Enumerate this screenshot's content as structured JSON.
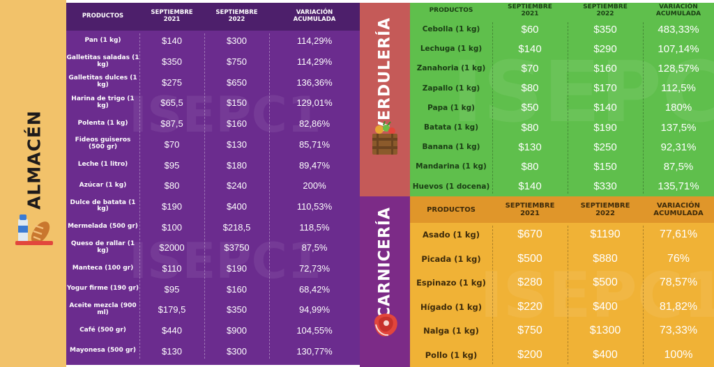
{
  "colors": {
    "almacen_side": "#f2c26a",
    "purple": "#6b2c8e",
    "purple_header": "#4d1f6b",
    "verduleria_side": "#c55a58",
    "green": "#5fbf4c",
    "carniceria_side": "#7c2b87",
    "orange": "#f0b236"
  },
  "watermark_text": "ISEPC1",
  "almacen": {
    "title": "ALMACÉN",
    "icon": "groceries-icon",
    "headers": [
      "PRODUCTOS",
      "SEPTIEMBRE\n2021",
      "SEPTIEMBRE\n2022",
      "VARIACIÓN\nACUMULADA"
    ],
    "rows": [
      [
        "Pan (1 kg)",
        "$140",
        "$300",
        "114,29%"
      ],
      [
        "Galletitas saladas (1 kg)",
        "$350",
        "$750",
        "114,29%"
      ],
      [
        "Galletitas dulces (1 kg)",
        "$275",
        "$650",
        "136,36%"
      ],
      [
        "Harina de trigo (1 kg)",
        "$65,5",
        "$150",
        "129,01%"
      ],
      [
        "Polenta (1 kg)",
        "$87,5",
        "$160",
        "82,86%"
      ],
      [
        "Fideos guiseros (500 gr)",
        "$70",
        "$130",
        "85,71%"
      ],
      [
        "Leche (1 litro)",
        "$95",
        "$180",
        "89,47%"
      ],
      [
        "Azúcar (1 kg)",
        "$80",
        "$240",
        "200%"
      ],
      [
        "Dulce de batata (1 kg)",
        "$190",
        "$400",
        "110,53%"
      ],
      [
        "Mermelada (500 gr)",
        "$100",
        "$218,5",
        "118,5%"
      ],
      [
        "Queso de rallar (1 kg)",
        "$2000",
        "$3750",
        "87,5%"
      ],
      [
        "Manteca (100 gr)",
        "$110",
        "$190",
        "72,73%"
      ],
      [
        "Yogur firme (190 gr)",
        "$95",
        "$160",
        "68,42%"
      ],
      [
        "Aceite mezcla (900 ml)",
        "$179,5",
        "$350",
        "94,99%"
      ],
      [
        "Café (500 gr)",
        "$440",
        "$900",
        "104,55%"
      ],
      [
        "Mayonesa (500 gr)",
        "$130",
        "$300",
        "130,77%"
      ]
    ]
  },
  "verduleria": {
    "title": "VERDULERÍA",
    "icon": "vegetable-crate-icon",
    "headers": [
      "PRODUCTOS",
      "SEPTIEMBRE\n2021",
      "SEPTIEMBRE\n2022",
      "VARIACIÓN\nACUMULADA"
    ],
    "rows": [
      [
        "Cebolla (1 kg)",
        "$60",
        "$350",
        "483,33%"
      ],
      [
        "Lechuga (1 kg)",
        "$140",
        "$290",
        "107,14%"
      ],
      [
        "Zanahoria (1 kg)",
        "$70",
        "$160",
        "128,57%"
      ],
      [
        "Zapallo (1 kg)",
        "$80",
        "$170",
        "112,5%"
      ],
      [
        "Papa (1 kg)",
        "$50",
        "$140",
        "180%"
      ],
      [
        "Batata (1 kg)",
        "$80",
        "$190",
        "137,5%"
      ],
      [
        "Banana (1 kg)",
        "$130",
        "$250",
        "92,31%"
      ],
      [
        "Mandarina (1 kg)",
        "$80",
        "$150",
        "87,5%"
      ],
      [
        "Huevos (1 docena)",
        "$140",
        "$330",
        "135,71%"
      ]
    ]
  },
  "carniceria": {
    "title": "CARNICERÍA",
    "icon": "steak-icon",
    "headers": [
      "PRODUCTOS",
      "SEPTIEMBRE\n2021",
      "SEPTIEMBRE\n2022",
      "VARIACIÓN\nACUMULADA"
    ],
    "rows": [
      [
        "Asado (1 kg)",
        "$670",
        "$1190",
        "77,61%"
      ],
      [
        "Picada (1 kg)",
        "$500",
        "$880",
        "76%"
      ],
      [
        "Espinazo (1 kg)",
        "$280",
        "$500",
        "78,57%"
      ],
      [
        "Hígado (1 kg)",
        "$220",
        "$400",
        "81,82%"
      ],
      [
        "Nalga (1 kg)",
        "$750",
        "$1300",
        "73,33%"
      ],
      [
        "Pollo (1 kg)",
        "$200",
        "$400",
        "100%"
      ]
    ]
  }
}
